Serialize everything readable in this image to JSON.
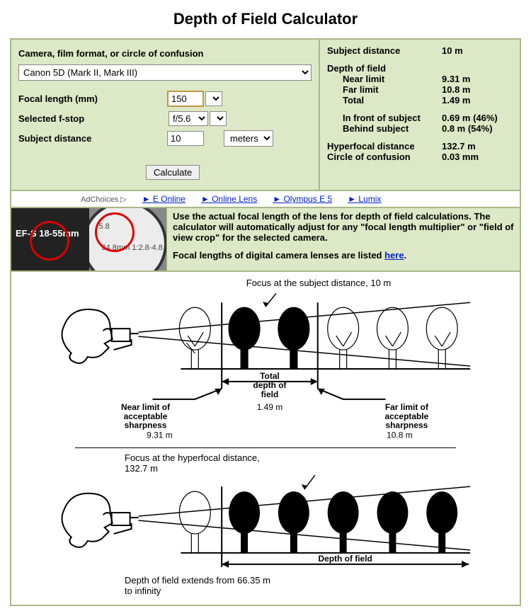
{
  "title": "Depth of Field Calculator",
  "form": {
    "camera_label": "Camera, film format, or circle of confusion",
    "camera_value": "Canon 5D (Mark II, Mark III)",
    "focal_label": "Focal length (mm)",
    "focal_value": "150",
    "fstop_label": "Selected f-stop",
    "fstop_value": "f/5.6",
    "dist_label": "Subject distance",
    "dist_value": "10",
    "unit_value": "meters",
    "calc_btn": "Calculate"
  },
  "results": {
    "subject_distance_label": "Subject distance",
    "subject_distance_value": "10 m",
    "dof_header": "Depth of field",
    "near_label": "Near limit",
    "near_value": "9.31 m",
    "far_label": "Far limit",
    "far_value": "10.8 m",
    "total_label": "Total",
    "total_value": "1.49 m",
    "front_label": "In front of subject",
    "front_value": "0.69 m (46%)",
    "behind_label": "Behind subject",
    "behind_value": "0.8 m (54%)",
    "hyperfocal_label": "Hyperfocal distance",
    "hyperfocal_value": "132.7 m",
    "coc_label": "Circle of confusion",
    "coc_value": "0.03 mm"
  },
  "ads": {
    "adchoices": "AdChoices ▷",
    "link1": "E Online",
    "link2": "Online Lens",
    "link3": "Olympus E 5",
    "link4": "Lumix"
  },
  "note": {
    "text1": "Use the actual focal length of the lens for depth of field calculations. The calculator will automatically adjust for any \"focal length multiplier\" or \"field of view crop\" for the selected camera.",
    "text2_pre": "Focal lengths of digital camera lenses are listed ",
    "text2_link": "here",
    "lens1_text": "EF-S 18-55mm",
    "lens2_text1": "5.8",
    "lens2_text2": "34.8mm",
    "lens2_text3": "1:2.8-4.8"
  },
  "diagram": {
    "focus_caption": "Focus at the subject distance, 10 m",
    "total_dof_label": "Total\ndepth of\nfield",
    "total_dof_value": "1.49 m",
    "near_label": "Near limit of\nacceptable\nsharpness",
    "near_value": "9.31 m",
    "far_label": "Far limit of\nacceptable\nsharpness",
    "far_value": "10.8 m",
    "hyper_caption": "Focus at the hyperfocal distance, 132.7 m",
    "dof_label2": "Depth of field",
    "extend_caption": "Depth of field extends from 66.35 m to infinity"
  }
}
